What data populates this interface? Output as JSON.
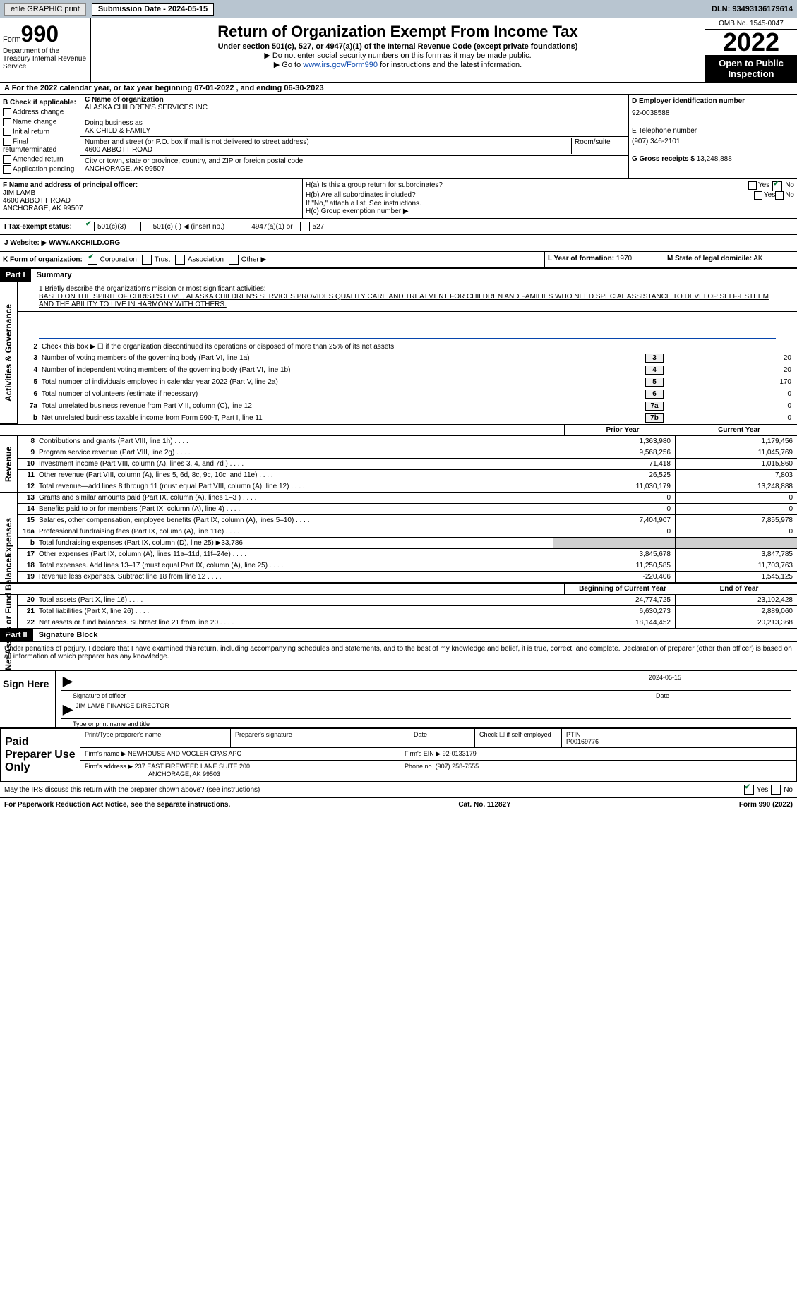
{
  "top": {
    "efile": "efile GRAPHIC print",
    "sub_label": "Submission Date - 2024-05-15",
    "dln": "DLN: 93493136179614"
  },
  "header": {
    "form_label": "Form",
    "form_no": "990",
    "dept": "Department of the Treasury\nInternal Revenue Service",
    "title": "Return of Organization Exempt From Income Tax",
    "subtitle": "Under section 501(c), 527, or 4947(a)(1) of the Internal Revenue Code (except private foundations)",
    "note1": "▶ Do not enter social security numbers on this form as it may be made public.",
    "note2_pre": "▶ Go to ",
    "note2_link": "www.irs.gov/Form990",
    "note2_post": " for instructions and the latest information.",
    "omb": "OMB No. 1545-0047",
    "year": "2022",
    "inspect": "Open to Public Inspection"
  },
  "lineA": "A For the 2022 calendar year, or tax year beginning 07-01-2022    , and ending 06-30-2023",
  "checkB": {
    "label": "B Check if applicable:",
    "items": [
      "Address change",
      "Name change",
      "Initial return",
      "Final return/terminated",
      "Amended return",
      "Application pending"
    ]
  },
  "c": {
    "name_lbl": "C Name of organization",
    "name": "ALASKA CHILDREN'S SERVICES INC",
    "dba_lbl": "Doing business as",
    "dba": "AK CHILD & FAMILY",
    "addr_lbl": "Number and street (or P.O. box if mail is not delivered to street address)",
    "room_lbl": "Room/suite",
    "addr": "4600 ABBOTT ROAD",
    "city_lbl": "City or town, state or province, country, and ZIP or foreign postal code",
    "city": "ANCHORAGE, AK  99507"
  },
  "d": {
    "ein_lbl": "D Employer identification number",
    "ein": "92-0038588",
    "tel_lbl": "E Telephone number",
    "tel": "(907) 346-2101",
    "gross_lbl": "G Gross receipts $",
    "gross": "13,248,888"
  },
  "f": {
    "lbl": "F  Name and address of principal officer:",
    "name": "JIM LAMB",
    "addr1": "4600 ABBOTT ROAD",
    "addr2": "ANCHORAGE, AK  99507"
  },
  "h": {
    "a": "H(a)  Is this a group return for subordinates?",
    "b": "H(b)  Are all subordinates included?",
    "note": "If \"No,\" attach a list. See instructions.",
    "c": "H(c)  Group exemption number ▶"
  },
  "tax": {
    "lbl": "I   Tax-exempt status:",
    "o1": "501(c)(3)",
    "o2": "501(c) (  ) ◀ (insert no.)",
    "o3": "4947(a)(1) or",
    "o4": "527"
  },
  "web": {
    "lbl": "J   Website: ▶",
    "val": "WWW.AKCHILD.ORG"
  },
  "k": {
    "lbl": "K Form of organization:",
    "o1": "Corporation",
    "o2": "Trust",
    "o3": "Association",
    "o4": "Other ▶"
  },
  "l": {
    "lbl": "L Year of formation:",
    "val": "1970"
  },
  "m": {
    "lbl": "M State of legal domicile:",
    "val": "AK"
  },
  "part1": {
    "lbl": "Part I",
    "title": "Summary"
  },
  "mission": {
    "q": "1  Briefly describe the organization's mission or most significant activities:",
    "txt": "BASED ON THE SPIRIT OF CHRIST'S LOVE, ALASKA CHILDREN'S SERVICES PROVIDES QUALITY CARE AND TREATMENT FOR CHILDREN AND FAMILIES WHO NEED SPECIAL ASSISTANCE TO DEVELOP SELF-ESTEEM AND THE ABILITY TO LIVE IN HARMONY WITH OTHERS."
  },
  "lines_gov": [
    {
      "n": "2",
      "t": "Check this box ▶ ☐ if the organization discontinued its operations or disposed of more than 25% of its net assets."
    },
    {
      "n": "3",
      "t": "Number of voting members of the governing body (Part VI, line 1a)",
      "box": "3",
      "v": "20"
    },
    {
      "n": "4",
      "t": "Number of independent voting members of the governing body (Part VI, line 1b)",
      "box": "4",
      "v": "20"
    },
    {
      "n": "5",
      "t": "Total number of individuals employed in calendar year 2022 (Part V, line 2a)",
      "box": "5",
      "v": "170"
    },
    {
      "n": "6",
      "t": "Total number of volunteers (estimate if necessary)",
      "box": "6",
      "v": "0"
    },
    {
      "n": "7a",
      "t": "Total unrelated business revenue from Part VIII, column (C), line 12",
      "box": "7a",
      "v": "0"
    },
    {
      "n": "b",
      "t": "Net unrelated business taxable income from Form 990-T, Part I, line 11",
      "box": "7b",
      "v": "0"
    }
  ],
  "hdr_cols": {
    "c1": "Prior Year",
    "c2": "Current Year"
  },
  "rev": [
    {
      "n": "8",
      "t": "Contributions and grants (Part VIII, line 1h)",
      "v1": "1,363,980",
      "v2": "1,179,456"
    },
    {
      "n": "9",
      "t": "Program service revenue (Part VIII, line 2g)",
      "v1": "9,568,256",
      "v2": "11,045,769"
    },
    {
      "n": "10",
      "t": "Investment income (Part VIII, column (A), lines 3, 4, and 7d )",
      "v1": "71,418",
      "v2": "1,015,860"
    },
    {
      "n": "11",
      "t": "Other revenue (Part VIII, column (A), lines 5, 6d, 8c, 9c, 10c, and 11e)",
      "v1": "26,525",
      "v2": "7,803"
    },
    {
      "n": "12",
      "t": "Total revenue—add lines 8 through 11 (must equal Part VIII, column (A), line 12)",
      "v1": "11,030,179",
      "v2": "13,248,888"
    }
  ],
  "exp": [
    {
      "n": "13",
      "t": "Grants and similar amounts paid (Part IX, column (A), lines 1–3 )",
      "v1": "0",
      "v2": "0"
    },
    {
      "n": "14",
      "t": "Benefits paid to or for members (Part IX, column (A), line 4)",
      "v1": "0",
      "v2": "0"
    },
    {
      "n": "15",
      "t": "Salaries, other compensation, employee benefits (Part IX, column (A), lines 5–10)",
      "v1": "7,404,907",
      "v2": "7,855,978"
    },
    {
      "n": "16a",
      "t": "Professional fundraising fees (Part IX, column (A), line 11e)",
      "v1": "0",
      "v2": "0"
    },
    {
      "n": "b",
      "t": "Total fundraising expenses (Part IX, column (D), line 25) ▶33,786",
      "shade": true
    },
    {
      "n": "17",
      "t": "Other expenses (Part IX, column (A), lines 11a–11d, 11f–24e)",
      "v1": "3,845,678",
      "v2": "3,847,785"
    },
    {
      "n": "18",
      "t": "Total expenses. Add lines 13–17 (must equal Part IX, column (A), line 25)",
      "v1": "11,250,585",
      "v2": "11,703,763"
    },
    {
      "n": "19",
      "t": "Revenue less expenses. Subtract line 18 from line 12",
      "v1": "-220,406",
      "v2": "1,545,125"
    }
  ],
  "hdr_cols2": {
    "c1": "Beginning of Current Year",
    "c2": "End of Year"
  },
  "net": [
    {
      "n": "20",
      "t": "Total assets (Part X, line 16)",
      "v1": "24,774,725",
      "v2": "23,102,428"
    },
    {
      "n": "21",
      "t": "Total liabilities (Part X, line 26)",
      "v1": "6,630,273",
      "v2": "2,889,060"
    },
    {
      "n": "22",
      "t": "Net assets or fund balances. Subtract line 21 from line 20",
      "v1": "18,144,452",
      "v2": "20,213,368"
    }
  ],
  "part2": {
    "lbl": "Part II",
    "title": "Signature Block"
  },
  "perjury": "Under penalties of perjury, I declare that I have examined this return, including accompanying schedules and statements, and to the best of my knowledge and belief, it is true, correct, and complete. Declaration of preparer (other than officer) is based on all information of which preparer has any knowledge.",
  "sign": {
    "here": "Sign Here",
    "sig_lbl": "Signature of officer",
    "date": "2024-05-15",
    "date_lbl": "Date",
    "name": "JIM LAMB FINANCE DIRECTOR",
    "name_lbl": "Type or print name and title"
  },
  "prep": {
    "title": "Paid Preparer Use Only",
    "h1": "Print/Type preparer's name",
    "h2": "Preparer's signature",
    "h3": "Date",
    "h4": "Check ☐ if self-employed",
    "h5": "PTIN",
    "ptin": "P00169776",
    "firm_lbl": "Firm's name    ▶",
    "firm": "NEWHOUSE AND VOGLER CPAS APC",
    "ein_lbl": "Firm's EIN ▶",
    "ein": "92-0133179",
    "addr_lbl": "Firm's address ▶",
    "addr1": "237 EAST FIREWEED LANE SUITE 200",
    "addr2": "ANCHORAGE, AK  99503",
    "phone_lbl": "Phone no.",
    "phone": "(907) 258-7555"
  },
  "discuss": "May the IRS discuss this return with the preparer shown above? (see instructions)",
  "footer": {
    "l": "For Paperwork Reduction Act Notice, see the separate instructions.",
    "m": "Cat. No. 11282Y",
    "r": "Form 990 (2022)"
  },
  "sides": {
    "gov": "Activities & Governance",
    "rev": "Revenue",
    "exp": "Expenses",
    "net": "Net Assets or Fund Balances"
  }
}
